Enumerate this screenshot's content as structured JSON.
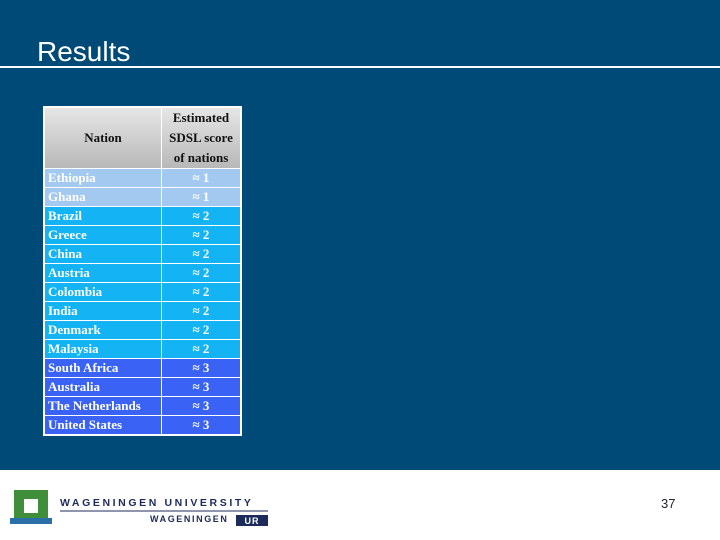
{
  "title": "Results",
  "table": {
    "header": [
      "Nation",
      "Estimated SDSL score of nations"
    ],
    "rows": [
      [
        "Ethiopia",
        "≈ 1"
      ],
      [
        "Ghana",
        "≈ 1"
      ],
      [
        "Brazil",
        "≈ 2"
      ],
      [
        "Greece",
        "≈ 2"
      ],
      [
        "China",
        "≈ 2"
      ],
      [
        "Austria",
        "≈ 2"
      ],
      [
        "Colombia",
        "≈ 2"
      ],
      [
        "India",
        "≈ 2"
      ],
      [
        "Denmark",
        "≈ 2"
      ],
      [
        "Malaysia",
        "≈ 2"
      ],
      [
        "South Africa",
        "≈ 3"
      ],
      [
        "Australia",
        "≈ 3"
      ],
      [
        "The Netherlands",
        "≈ 3"
      ],
      [
        "United States",
        "≈ 3"
      ]
    ]
  },
  "footer": {
    "university": "WAGENINGEN UNIVERSITY",
    "group": "WAGENINGEN",
    "group_mark": "UR",
    "page_number": "37"
  }
}
